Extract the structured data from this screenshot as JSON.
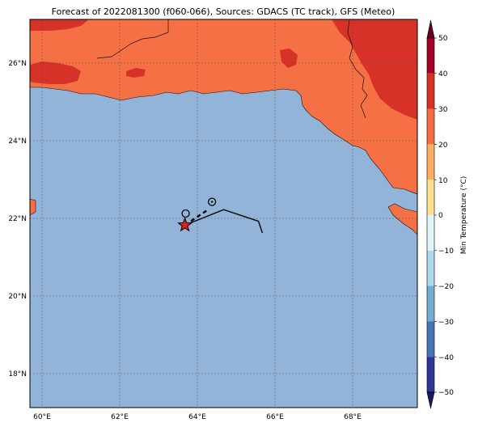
{
  "title": "Forecast of 2022081300 (f060-066), Sources: GDACS (TC track), GFS (Meteo)",
  "map": {
    "lon_range": [
      59.7,
      69.7
    ],
    "lat_range": [
      17.2,
      27.2
    ],
    "lon_ticks": [
      60,
      62,
      64,
      66,
      68
    ],
    "lat_ticks": [
      18,
      20,
      22,
      24,
      26
    ],
    "lon_tick_labels": [
      "60°E",
      "62°E",
      "64°E",
      "66°E",
      "68°E"
    ],
    "lat_tick_labels": [
      "18°N",
      "20°N",
      "22°N",
      "24°N",
      "26°N"
    ],
    "gridlines": true,
    "colors": {
      "ocean": "#92b4d9",
      "land_30_40": "#f57044",
      "land_40_50": "#d73228",
      "coastline": "#000000"
    },
    "track": [
      [
        63.7,
        21.9
      ],
      [
        64.7,
        22.3
      ],
      [
        65.6,
        22.0
      ],
      [
        65.7,
        21.7
      ]
    ],
    "forecast_track": [
      [
        63.7,
        21.9
      ],
      [
        64.3,
        22.3
      ]
    ],
    "current_position": {
      "lon": 63.7,
      "lat": 21.9,
      "icon": "star-icon",
      "color": "#e02020"
    },
    "forecast_markers": [
      {
        "lon": 63.72,
        "lat": 22.2,
        "icon": "open-circle-icon"
      },
      {
        "lon": 64.4,
        "lat": 22.5,
        "icon": "dotted-circle-icon"
      }
    ]
  },
  "colorbar": {
    "label": "Min Temperature (°C)",
    "tick_labels": [
      "50",
      "40",
      "30",
      "20",
      "10",
      "0",
      "−10",
      "−20",
      "−30",
      "−40",
      "−50"
    ],
    "colors": [
      "#67001f",
      "#a50026",
      "#d73027",
      "#f46d43",
      "#fdae61",
      "#fee090",
      "#ffffff",
      "#e0f3f8",
      "#abd9e9",
      "#74add1",
      "#4575b4",
      "#313695",
      "#1a1a5e"
    ]
  }
}
